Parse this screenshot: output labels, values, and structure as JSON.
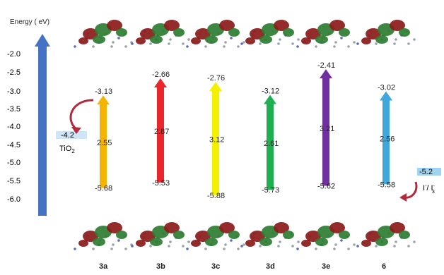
{
  "axis": {
    "title": "Energy ( eV)",
    "ticks": [
      "-2.0",
      "-2.5",
      "-3.0",
      "-3.5",
      "-4.0",
      "-4.5",
      "-5.0",
      "-5.5",
      "-6.0"
    ]
  },
  "tio2": {
    "value": "-4.2",
    "label": "TiO",
    "subscript": "2"
  },
  "redox": {
    "value": "-5.2",
    "label": "I",
    "label2": "/ I",
    "superscript": "-",
    "subscript": "3",
    "superscript2": "-"
  },
  "colors": {
    "axis_arrow": "#4472c4",
    "3a": "#f5b400",
    "3b": "#e8262c",
    "3c": "#f5ef00",
    "3d": "#1eb050",
    "3e": "#7030a0",
    "6": "#3ea8dc",
    "level_box": "#cfe4f5",
    "redox_box": "#9fd3f0",
    "curve_arrow": "#b22a3c"
  },
  "compounds": [
    {
      "id": "3a",
      "label": "3a",
      "lumo": "-3.13",
      "homo": "-5.68",
      "gap": "2.55",
      "color": "#f5b400"
    },
    {
      "id": "3b",
      "label": "3b",
      "lumo": "-2.66",
      "homo": "-5.53",
      "gap": "2.87",
      "color": "#e8262c"
    },
    {
      "id": "3c",
      "label": "3c",
      "lumo": "-2.76",
      "homo": "-5.88",
      "gap": "3.12",
      "color": "#f5ef00"
    },
    {
      "id": "3d",
      "label": "3d",
      "lumo": "-3.12",
      "homo": "-5.73",
      "gap": "2.61",
      "color": "#1eb050"
    },
    {
      "id": "3e",
      "label": "3e",
      "lumo": "-2.41",
      "homo": "-5.62",
      "gap": "3.21",
      "color": "#7030a0"
    },
    {
      "id": "6",
      "label": "6",
      "lumo": "-3.02",
      "homo": "-5.58",
      "gap": "2.56",
      "color": "#3ea8dc"
    }
  ]
}
